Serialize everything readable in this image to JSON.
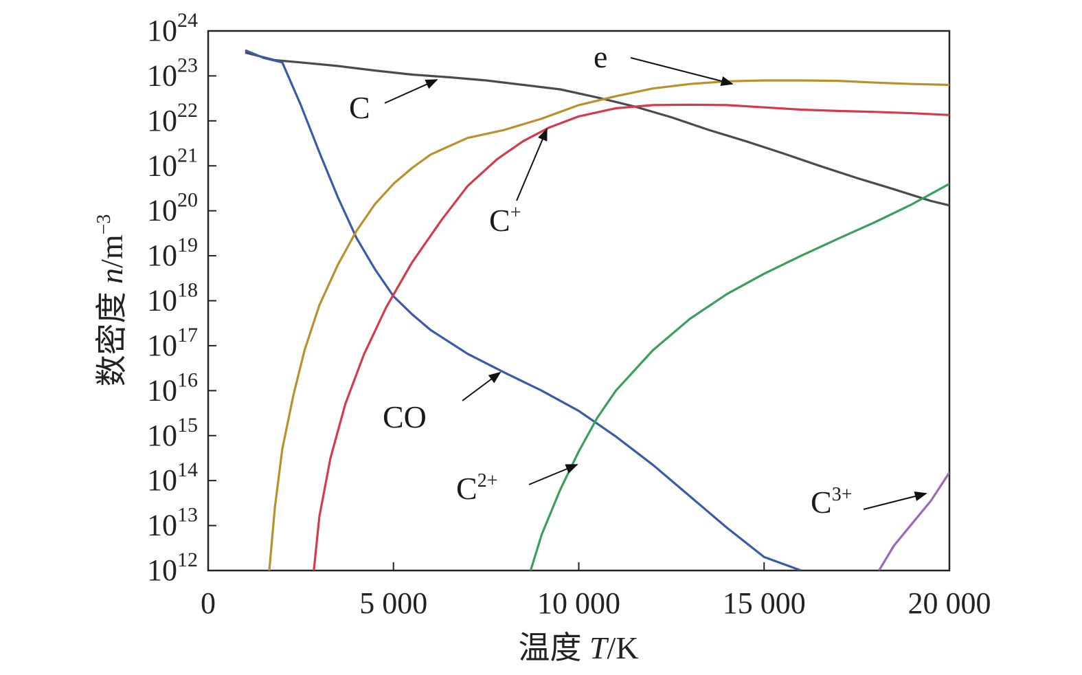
{
  "chart_data": {
    "type": "line",
    "title": "",
    "xlabel_prefix": "温度 ",
    "xlabel_symbol": "T",
    "xlabel_suffix": "/K",
    "ylabel_prefix": "数密度 ",
    "ylabel_symbol": "n",
    "ylabel_unit": "/m",
    "ylabel_unit_exp": "−3",
    "xlim": [
      0,
      20000
    ],
    "ylim_log10": [
      12,
      24
    ],
    "y_scale": "log",
    "grid": false,
    "x_ticks": [
      {
        "value": 0,
        "label": "0"
      },
      {
        "value": 5000,
        "label": "5 000"
      },
      {
        "value": 10000,
        "label": "10 000"
      },
      {
        "value": 15000,
        "label": "15 000"
      },
      {
        "value": 20000,
        "label": "20 000"
      }
    ],
    "y_ticks": [
      {
        "exp": 24,
        "base": "10",
        "sup": "24"
      },
      {
        "exp": 23,
        "base": "10",
        "sup": "23"
      },
      {
        "exp": 22,
        "base": "10",
        "sup": "22"
      },
      {
        "exp": 21,
        "base": "10",
        "sup": "21"
      },
      {
        "exp": 20,
        "base": "10",
        "sup": "20"
      },
      {
        "exp": 19,
        "base": "10",
        "sup": "19"
      },
      {
        "exp": 18,
        "base": "10",
        "sup": "18"
      },
      {
        "exp": 17,
        "base": "10",
        "sup": "17"
      },
      {
        "exp": 16,
        "base": "10",
        "sup": "16"
      },
      {
        "exp": 15,
        "base": "10",
        "sup": "15"
      },
      {
        "exp": 14,
        "base": "10",
        "sup": "14"
      },
      {
        "exp": 13,
        "base": "10",
        "sup": "13"
      },
      {
        "exp": 12,
        "base": "10",
        "sup": "12"
      }
    ],
    "series": [
      {
        "name": "C",
        "label_base": "C",
        "label_sup": "",
        "color": "#4a4a50",
        "x": [
          1000,
          1800,
          2500,
          3500,
          4500,
          5500,
          6500,
          7500,
          8500,
          9500,
          10500,
          11500,
          12500,
          13500,
          14500,
          15500,
          16500,
          17500,
          18500,
          19500,
          20000
        ],
        "log10_y": [
          23.52,
          23.35,
          23.3,
          23.22,
          23.12,
          23.03,
          22.97,
          22.9,
          22.8,
          22.7,
          22.52,
          22.32,
          22.08,
          21.8,
          21.55,
          21.28,
          21.0,
          20.73,
          20.48,
          20.22,
          20.12
        ]
      },
      {
        "name": "CO",
        "label_base": "CO",
        "label_sup": "",
        "color": "#3a5aa8",
        "x": [
          1000,
          1500,
          2000,
          2500,
          3000,
          3500,
          4000,
          4500,
          5000,
          5500,
          6000,
          7000,
          8000,
          9000,
          10000,
          11000,
          12000,
          13000,
          14000,
          15000,
          16000
        ],
        "log10_y": [
          23.57,
          23.4,
          23.3,
          22.35,
          21.3,
          20.3,
          19.4,
          18.7,
          18.1,
          17.7,
          17.35,
          16.82,
          16.4,
          16.0,
          15.55,
          14.98,
          14.35,
          13.65,
          12.95,
          12.3,
          12.0
        ]
      },
      {
        "name": "e",
        "label_base": "e",
        "label_sup": "",
        "color": "#b8902c",
        "x": [
          1650,
          1800,
          2000,
          2300,
          2600,
          3000,
          3500,
          4000,
          4500,
          5000,
          5500,
          6000,
          7000,
          8000,
          9000,
          10000,
          11000,
          12000,
          13000,
          14000,
          15000,
          16000,
          17000,
          18000,
          19000,
          20000
        ],
        "log10_y": [
          12.0,
          13.4,
          14.7,
          15.9,
          16.9,
          17.9,
          18.8,
          19.55,
          20.15,
          20.6,
          20.95,
          21.25,
          21.62,
          21.8,
          22.05,
          22.35,
          22.55,
          22.72,
          22.82,
          22.88,
          22.9,
          22.9,
          22.89,
          22.85,
          22.82,
          22.8
        ]
      },
      {
        "name": "C+",
        "label_base": "C",
        "label_sup": "+",
        "color": "#d63a4a",
        "x": [
          2850,
          3000,
          3300,
          3700,
          4200,
          4800,
          5500,
          6300,
          7000,
          7800,
          8500,
          9200,
          10000,
          11000,
          12000,
          13000,
          14000,
          15000,
          16000,
          17000,
          18000,
          19000,
          20000
        ],
        "log10_y": [
          12.0,
          13.2,
          14.5,
          15.7,
          16.8,
          17.85,
          18.85,
          19.8,
          20.55,
          21.15,
          21.55,
          21.85,
          22.1,
          22.28,
          22.35,
          22.36,
          22.35,
          22.3,
          22.25,
          22.22,
          22.2,
          22.17,
          22.13
        ]
      },
      {
        "name": "C2+",
        "label_base": "C",
        "label_sup": "2+",
        "color": "#3a9e5e",
        "x": [
          8700,
          9000,
          9500,
          10000,
          10500,
          11000,
          12000,
          13000,
          14000,
          15000,
          16000,
          17000,
          18000,
          19000,
          20000
        ],
        "log10_y": [
          12.0,
          12.8,
          13.8,
          14.65,
          15.4,
          16.0,
          16.9,
          17.6,
          18.15,
          18.6,
          19.0,
          19.38,
          19.75,
          20.15,
          20.6
        ]
      },
      {
        "name": "C3+",
        "label_base": "C",
        "label_sup": "3+",
        "color": "#9a6ab4",
        "x": [
          18100,
          18500,
          19000,
          19500,
          20000
        ],
        "log10_y": [
          12.0,
          12.55,
          13.05,
          13.55,
          14.18
        ]
      }
    ]
  }
}
